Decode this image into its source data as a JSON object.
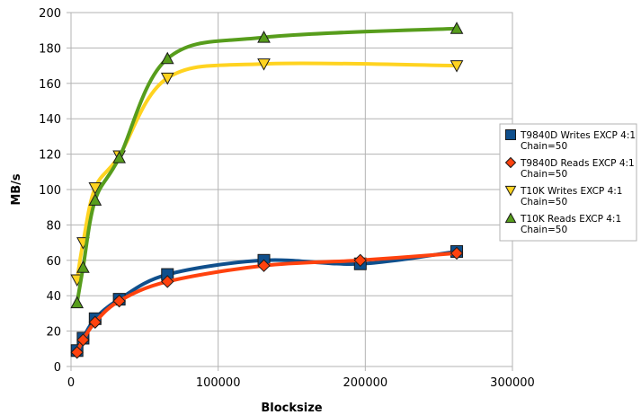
{
  "chart_data": {
    "type": "line",
    "title": "",
    "xlabel": "Blocksize",
    "ylabel": "MB/s",
    "xlim": [
      0,
      300000
    ],
    "ylim": [
      0,
      200
    ],
    "x_ticks": [
      0,
      100000,
      200000,
      300000
    ],
    "y_ticks": [
      0,
      20,
      40,
      60,
      80,
      100,
      120,
      140,
      160,
      180,
      200
    ],
    "grid": true,
    "smooth": true,
    "legend_position": "right",
    "series": [
      {
        "name": "T9840D Writes EXCP 4:1 Chain=50",
        "legend_lines": [
          "T9840D Writes EXCP 4:1",
          "Chain=50"
        ],
        "color": "#0f4f8c",
        "marker": "square",
        "x": [
          4096,
          8192,
          16384,
          32768,
          65536,
          131072,
          196608,
          262144
        ],
        "y": [
          9,
          16,
          27,
          38,
          52,
          60,
          58,
          65
        ]
      },
      {
        "name": "T9840D Reads EXCP 4:1 Chain=50",
        "legend_lines": [
          "T9840D Reads EXCP 4:1",
          "Chain=50"
        ],
        "color": "#ff420e",
        "marker": "diamond",
        "x": [
          4096,
          8192,
          16384,
          32768,
          65536,
          131072,
          196608,
          262144
        ],
        "y": [
          8,
          15,
          25,
          37,
          48,
          57,
          60,
          64
        ]
      },
      {
        "name": "T10K Writes EXCP 4:1 Chain=50",
        "legend_lines": [
          "T10K Writes EXCP 4:1",
          "Chain=50"
        ],
        "color": "#ffd320",
        "marker": "triangle-down",
        "x": [
          4096,
          8192,
          16384,
          32768,
          65536,
          131072,
          262144
        ],
        "y": [
          49,
          70,
          101,
          119,
          163,
          171,
          170
        ]
      },
      {
        "name": "T10K Reads EXCP 4:1 Chain=50",
        "legend_lines": [
          "T10K Reads EXCP 4:1",
          "Chain=50"
        ],
        "color": "#579d1c",
        "marker": "triangle-up",
        "x": [
          4096,
          8192,
          16384,
          32768,
          65536,
          131072,
          262144
        ],
        "y": [
          36,
          56,
          94,
          118,
          174,
          186,
          191
        ]
      }
    ]
  }
}
